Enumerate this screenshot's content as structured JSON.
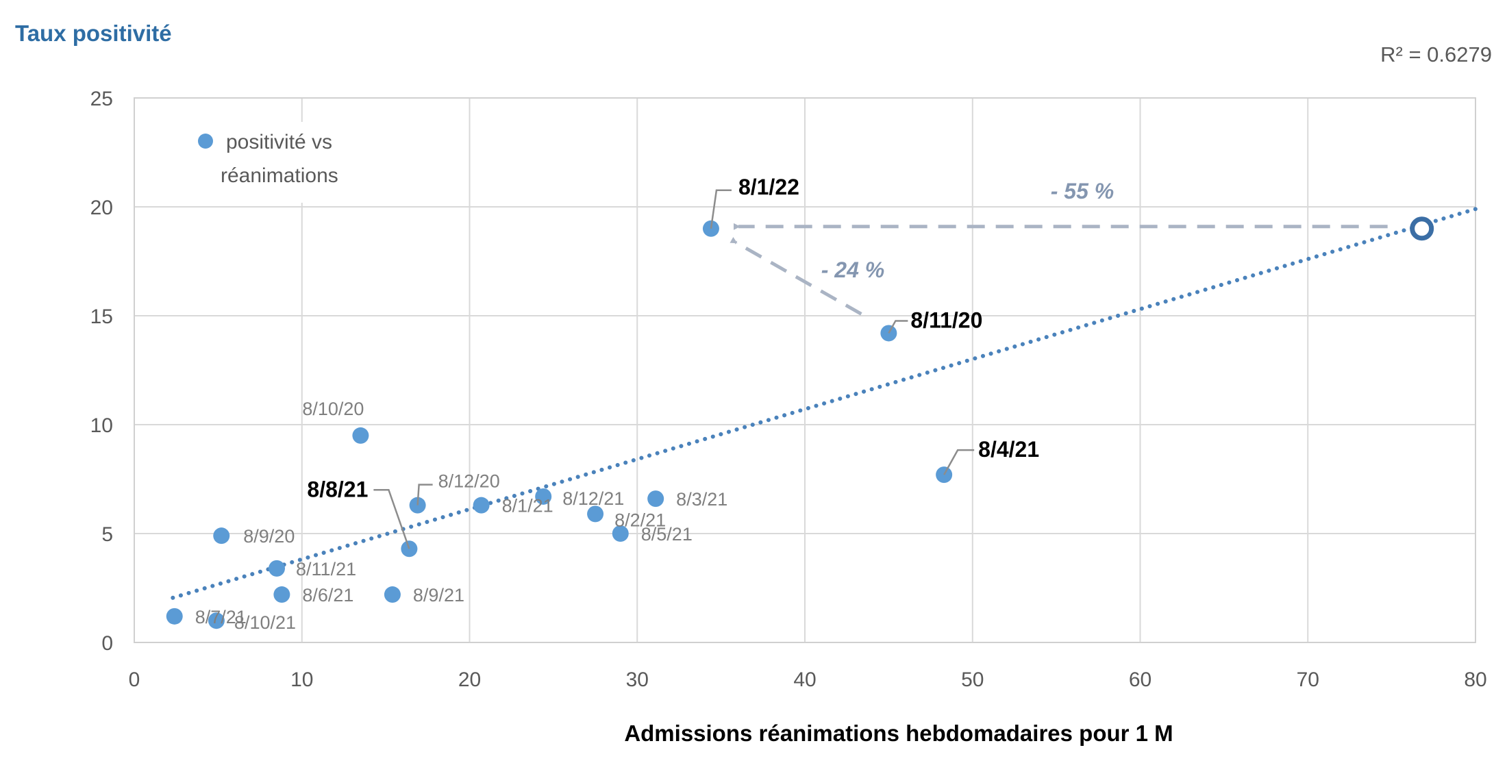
{
  "chart_data": {
    "type": "scatter",
    "title": "",
    "ylabel": "Taux positivité",
    "xlabel": "Admissions réanimations hebdomadaires pour 1 M",
    "xlim": [
      0,
      80
    ],
    "ylim": [
      0,
      25
    ],
    "xticks": [
      "0",
      "10",
      "20",
      "30",
      "40",
      "50",
      "60",
      "70",
      "80"
    ],
    "yticks": [
      "0",
      "5",
      "10",
      "15",
      "20",
      "25"
    ],
    "grid": true,
    "legend": {
      "position": "top-left",
      "entries": [
        "positivité vs",
        "réanimations"
      ]
    },
    "series": [
      {
        "name": "positivité vs réanimations",
        "color": "#5b9bd5",
        "points": [
          {
            "label": "8/9/20",
            "x": 5.2,
            "y": 4.9,
            "bold": false
          },
          {
            "label": "8/10/20",
            "x": 13.5,
            "y": 9.5,
            "bold": false
          },
          {
            "label": "8/11/20",
            "x": 45.0,
            "y": 14.2,
            "bold": true
          },
          {
            "label": "8/12/20",
            "x": 16.9,
            "y": 6.3,
            "bold": false
          },
          {
            "label": "8/1/21",
            "x": 20.7,
            "y": 6.3,
            "bold": false
          },
          {
            "label": "8/2/21",
            "x": 27.5,
            "y": 5.9,
            "bold": false
          },
          {
            "label": "8/3/21",
            "x": 31.1,
            "y": 6.6,
            "bold": false
          },
          {
            "label": "8/4/21",
            "x": 48.3,
            "y": 7.7,
            "bold": true
          },
          {
            "label": "8/5/21",
            "x": 29.0,
            "y": 5.0,
            "bold": false
          },
          {
            "label": "8/6/21",
            "x": 8.8,
            "y": 2.2,
            "bold": false
          },
          {
            "label": "8/7/21",
            "x": 2.4,
            "y": 1.2,
            "bold": false
          },
          {
            "label": "8/8/21",
            "x": 16.4,
            "y": 4.3,
            "bold": true
          },
          {
            "label": "8/9/21",
            "x": 15.4,
            "y": 2.2,
            "bold": false
          },
          {
            "label": "8/10/21",
            "x": 4.9,
            "y": 1.0,
            "bold": false
          },
          {
            "label": "8/11/21",
            "x": 8.5,
            "y": 3.4,
            "bold": false
          },
          {
            "label": "8/12/21",
            "x": 24.4,
            "y": 6.7,
            "bold": false
          },
          {
            "label": "8/1/22",
            "x": 34.4,
            "y": 19.0,
            "bold": true
          }
        ]
      }
    ],
    "trendline": {
      "type": "linear",
      "color": "#4a82bb",
      "style": "dotted",
      "x_start": 2.3,
      "y_start": 2.05,
      "x_end": 80,
      "y_end": 19.9,
      "r_squared_label": "R² = 0.6279"
    },
    "reference_point": {
      "x": 76.8,
      "y": 19.0,
      "color": "#3b6ea5",
      "style": "open-circle"
    },
    "annotations": [
      {
        "text": "- 55 %",
        "from": [
          76.8,
          19.0
        ],
        "to": [
          34.4,
          19.0
        ],
        "color": "#aab4c4"
      },
      {
        "text": "- 24 %",
        "from": [
          45.0,
          14.2
        ],
        "to": [
          34.4,
          19.0
        ],
        "color": "#aab4c4"
      }
    ]
  }
}
